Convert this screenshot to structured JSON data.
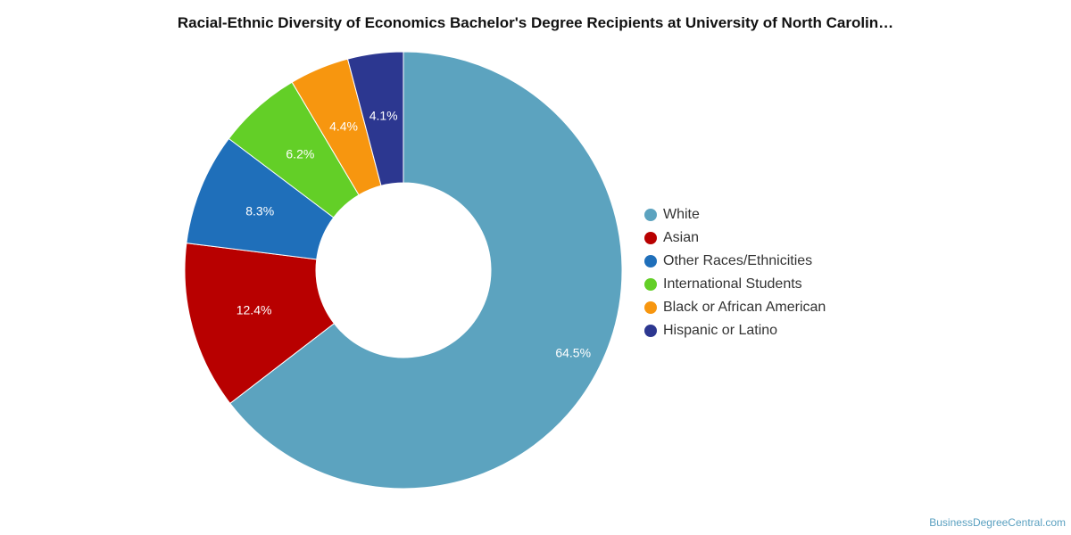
{
  "title": "Racial-Ethnic Diversity of Economics Bachelor's Degree Recipients at University of North Carolin…",
  "credit": "BusinessDegreeCentral.com",
  "chart_data": {
    "type": "pie",
    "donut": true,
    "legend_position": "right",
    "slices": [
      {
        "name": "White",
        "value": 64.5,
        "label": "64.5%",
        "color": "#5ca3bf"
      },
      {
        "name": "Asian",
        "value": 12.4,
        "label": "12.4%",
        "color": "#b80000"
      },
      {
        "name": "Other Races/Ethnicities",
        "value": 8.3,
        "label": "8.3%",
        "color": "#1f6fba"
      },
      {
        "name": "International Students",
        "value": 6.2,
        "label": "6.2%",
        "color": "#63cf27"
      },
      {
        "name": "Black or African American",
        "value": 4.4,
        "label": "4.4%",
        "color": "#f7960f"
      },
      {
        "name": "Hispanic or Latino",
        "value": 4.1,
        "label": "4.1%",
        "color": "#2c3790"
      }
    ]
  }
}
